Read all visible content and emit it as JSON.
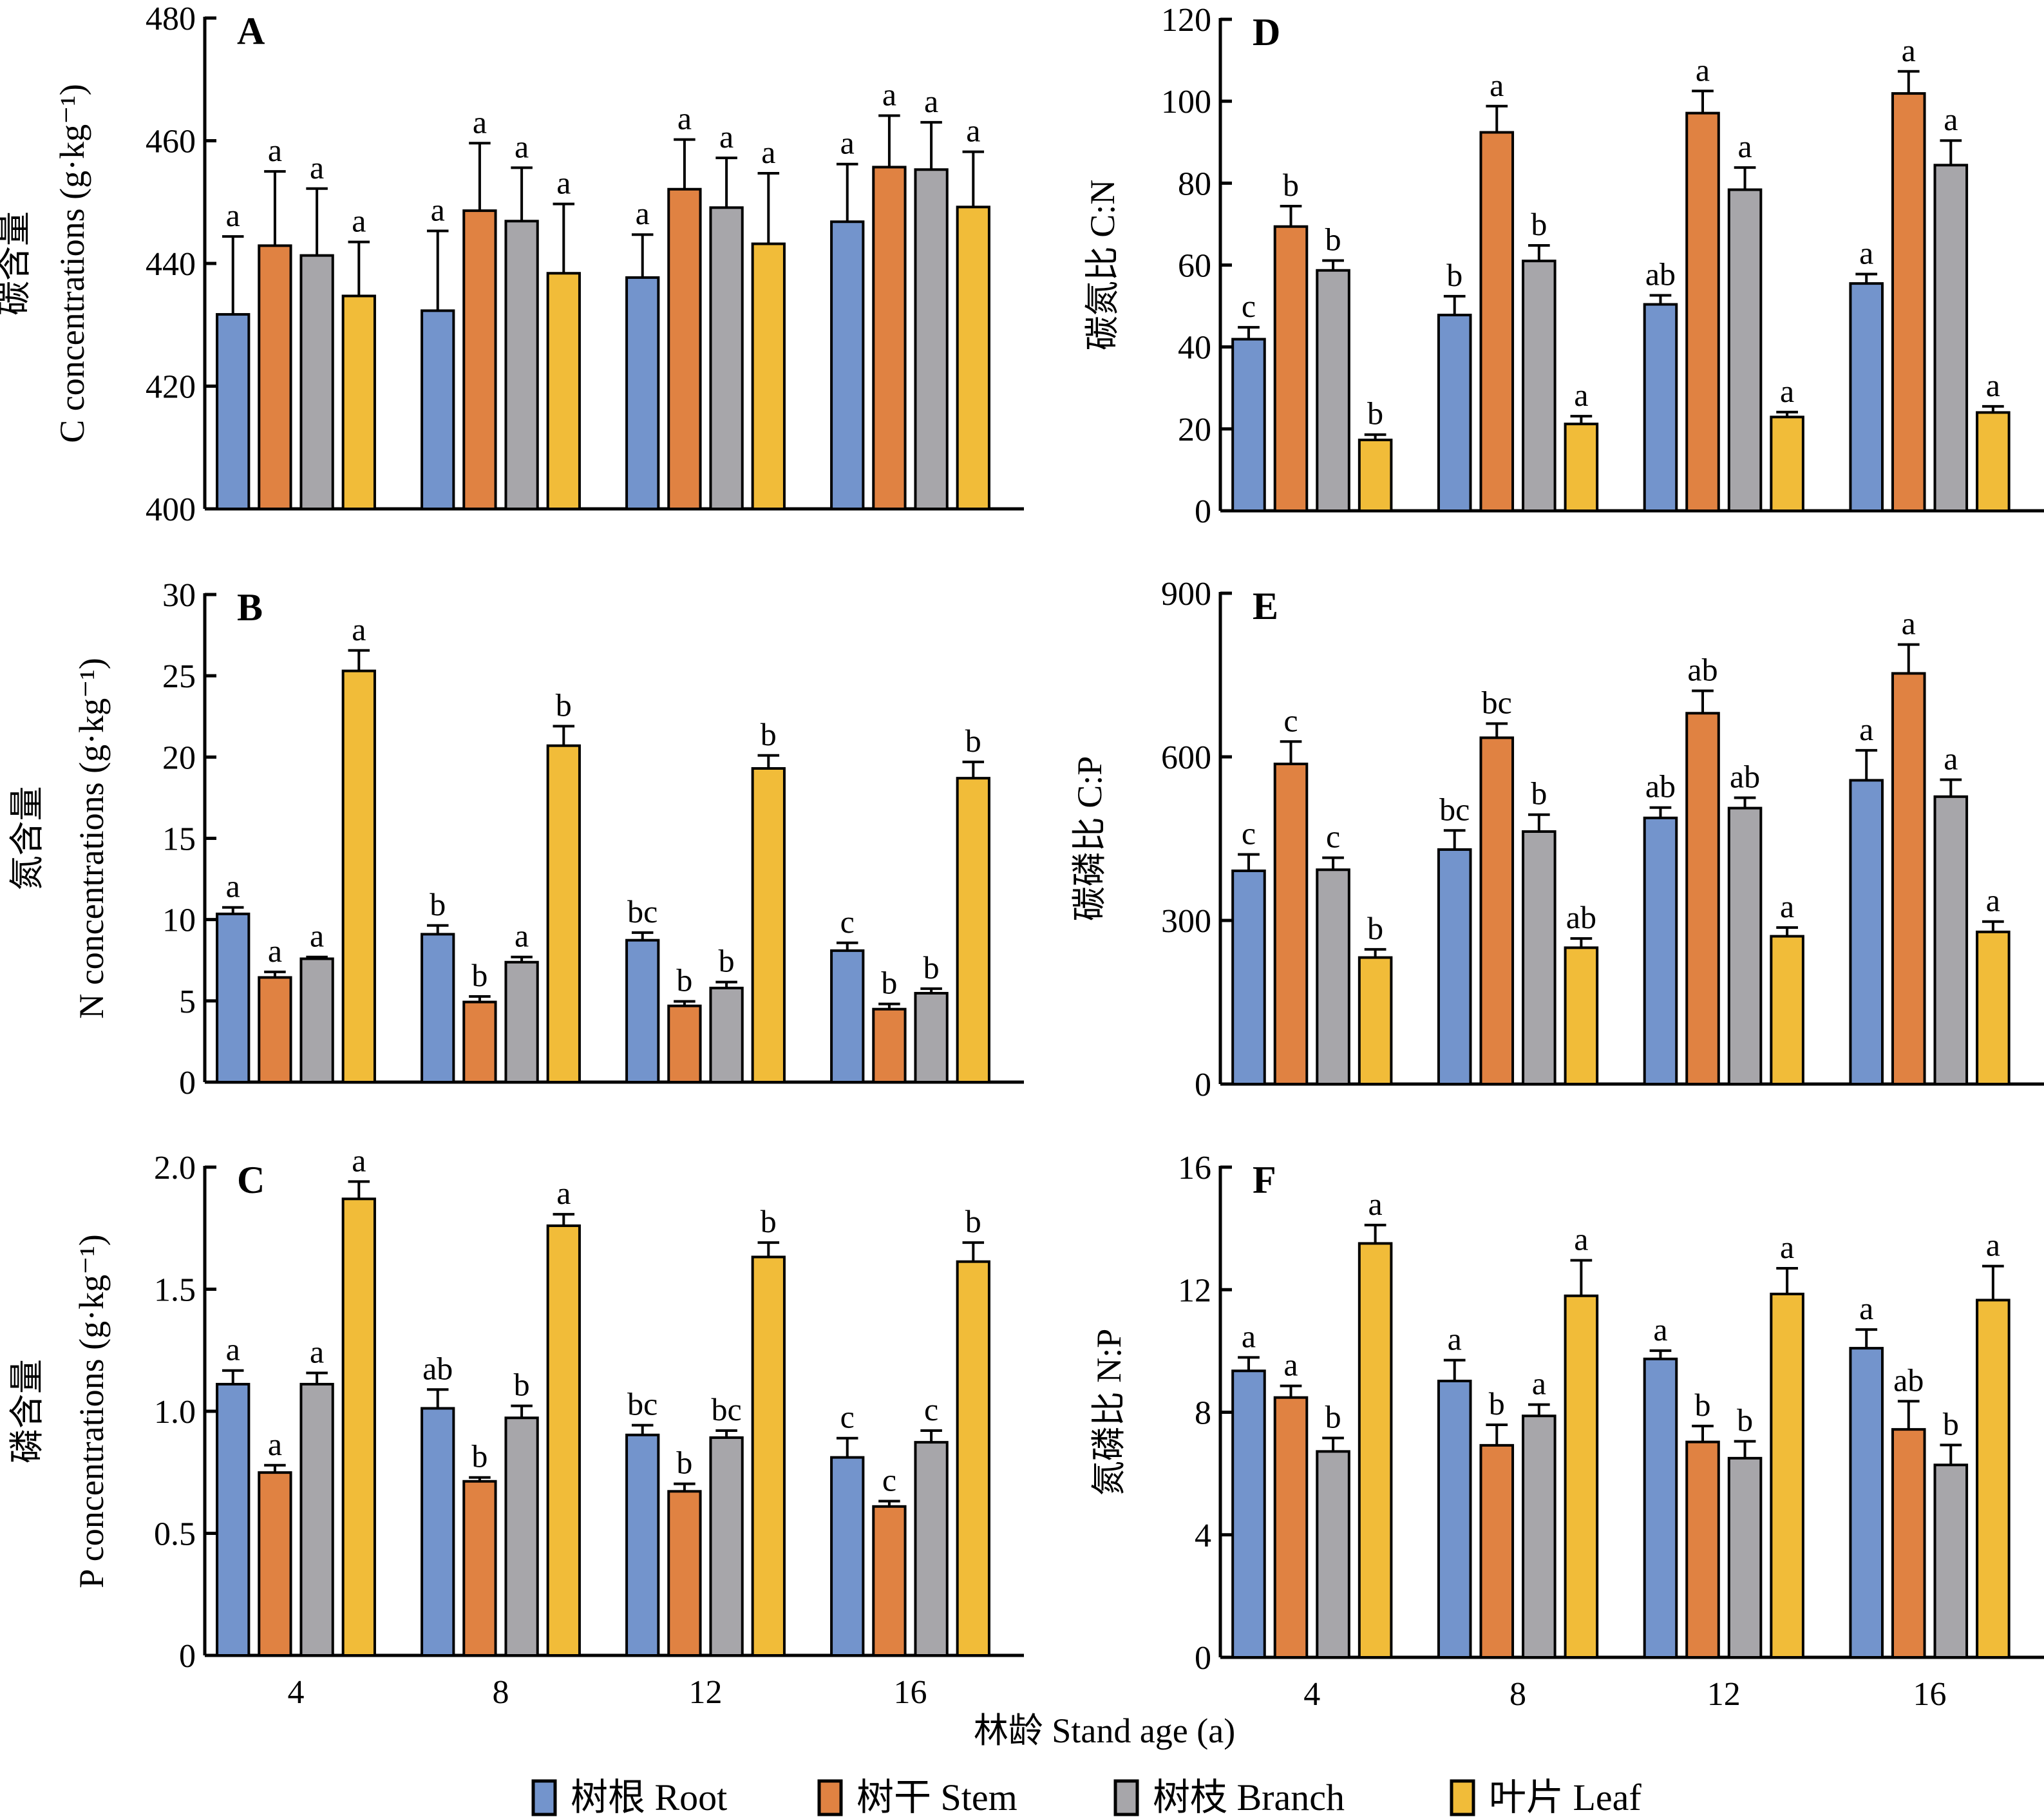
{
  "figure": {
    "x_axis_title": "林龄 Stand age (a)",
    "legend": [
      {
        "label": "树根 Root",
        "color": "#7394cc"
      },
      {
        "label": "树干 Stem",
        "color": "#e08242"
      },
      {
        "label": "树枝 Branch",
        "color": "#a7a6aa"
      },
      {
        "label": "叶片 Leaf",
        "color": "#f1bc39"
      }
    ]
  },
  "chart_data": [
    {
      "panel": "A",
      "type": "bar",
      "title": "A",
      "ylabel_cn": "碳含量",
      "ylabel": "C concentrations (g·kg⁻¹)",
      "xlabel": "林龄 Stand age (a)",
      "categories": [
        "4",
        "8",
        "12",
        "16"
      ],
      "ylim": [
        400,
        480
      ],
      "yticks": [
        400,
        420,
        440,
        460,
        480
      ],
      "ytick_labels": [
        "400",
        "420",
        "440",
        "460",
        "480"
      ],
      "show_xtick_labels": false,
      "series": [
        {
          "name": "树根 Root",
          "values": [
            431.7,
            432.3,
            437.7,
            446.8
          ],
          "error_top": [
            444.4,
            445.3,
            444.7,
            456.2
          ],
          "letters": [
            "a",
            "a",
            "a",
            "a"
          ]
        },
        {
          "name": "树干 Stem",
          "values": [
            442.9,
            448.6,
            452.1,
            455.7
          ],
          "error_top": [
            455.0,
            459.6,
            460.2,
            464.1
          ],
          "letters": [
            "a",
            "a",
            "a",
            "a"
          ]
        },
        {
          "name": "树枝 Branch",
          "values": [
            441.3,
            446.9,
            449.1,
            455.3
          ],
          "error_top": [
            452.2,
            455.6,
            457.2,
            463.0
          ],
          "letters": [
            "a",
            "a",
            "a",
            "a"
          ]
        },
        {
          "name": "叶片 Leaf",
          "values": [
            434.7,
            438.4,
            443.2,
            449.2
          ],
          "error_top": [
            443.5,
            449.7,
            454.7,
            458.2
          ],
          "letters": [
            "a",
            "a",
            "a",
            "a"
          ]
        }
      ]
    },
    {
      "panel": "B",
      "type": "bar",
      "title": "B",
      "ylabel_cn": "氮含量",
      "ylabel": "N concentrations (g·kg⁻¹)",
      "xlabel": "林龄 Stand age (a)",
      "categories": [
        "4",
        "8",
        "12",
        "16"
      ],
      "ylim": [
        0,
        30
      ],
      "yticks": [
        0,
        5,
        10,
        15,
        20,
        25,
        30
      ],
      "ytick_labels": [
        "0",
        "5",
        "10",
        "15",
        "20",
        "25",
        "30"
      ],
      "show_xtick_labels": false,
      "series": [
        {
          "name": "树根 Root",
          "values": [
            10.35,
            9.1,
            8.73,
            8.09
          ],
          "error_top": [
            10.75,
            9.64,
            9.2,
            8.57
          ],
          "letters": [
            "a",
            "b",
            "bc",
            "c"
          ]
        },
        {
          "name": "树干 Stem",
          "values": [
            6.44,
            4.93,
            4.69,
            4.49
          ],
          "error_top": [
            6.78,
            5.27,
            4.97,
            4.81
          ],
          "letters": [
            "a",
            "b",
            "b",
            "b"
          ]
        },
        {
          "name": "树枝 Branch",
          "values": [
            7.59,
            7.38,
            5.79,
            5.47
          ],
          "error_top": [
            7.7,
            7.7,
            6.16,
            5.75
          ],
          "letters": [
            "a",
            "a",
            "b",
            "b"
          ]
        },
        {
          "name": "叶片 Leaf",
          "values": [
            25.3,
            20.7,
            19.3,
            18.7
          ],
          "error_top": [
            26.56,
            21.9,
            20.1,
            19.7
          ],
          "letters": [
            "a",
            "b",
            "b",
            "b"
          ]
        }
      ]
    },
    {
      "panel": "C",
      "type": "bar",
      "title": "C",
      "ylabel_cn": "磷含量",
      "ylabel": "P concentrations (g·kg⁻¹)",
      "xlabel": "林龄 Stand age (a)",
      "categories": [
        "4",
        "8",
        "12",
        "16"
      ],
      "ylim": [
        0,
        2.0
      ],
      "yticks": [
        0,
        0.5,
        1.0,
        1.5,
        2.0
      ],
      "ytick_labels": [
        "0",
        "0.5",
        "1.0",
        "1.5",
        "2.0"
      ],
      "show_xtick_labels": true,
      "series": [
        {
          "name": "树根 Root",
          "values": [
            1.111,
            1.012,
            0.903,
            0.811
          ],
          "error_top": [
            1.167,
            1.089,
            0.943,
            0.89
          ],
          "letters": [
            "a",
            "ab",
            "bc",
            "c"
          ]
        },
        {
          "name": "树干 Stem",
          "values": [
            0.749,
            0.713,
            0.672,
            0.61
          ],
          "error_top": [
            0.779,
            0.729,
            0.703,
            0.632
          ],
          "letters": [
            "a",
            "b",
            "b",
            "c"
          ]
        },
        {
          "name": "树枝 Branch",
          "values": [
            1.111,
            0.973,
            0.892,
            0.873
          ],
          "error_top": [
            1.157,
            1.022,
            0.921,
            0.921
          ],
          "letters": [
            "a",
            "b",
            "bc",
            "c"
          ]
        },
        {
          "name": "叶片 Leaf",
          "values": [
            1.87,
            1.76,
            1.632,
            1.613
          ],
          "error_top": [
            1.941,
            1.807,
            1.691,
            1.691
          ],
          "letters": [
            "a",
            "a",
            "b",
            "b"
          ]
        }
      ]
    },
    {
      "panel": "D",
      "type": "bar",
      "title": "D",
      "ylabel_cn": "碳氮比",
      "ylabel": "C:N",
      "xlabel": "林龄 Stand age (a)",
      "categories": [
        "4",
        "8",
        "12",
        "16"
      ],
      "ylim": [
        0,
        120
      ],
      "yticks": [
        0,
        20,
        40,
        60,
        80,
        100,
        120
      ],
      "ytick_labels": [
        "0",
        "20",
        "40",
        "60",
        "80",
        "100",
        "120"
      ],
      "show_xtick_labels": false,
      "series": [
        {
          "name": "树根 Root",
          "values": [
            41.9,
            47.8,
            50.4,
            55.5
          ],
          "error_top": [
            44.8,
            52.4,
            52.6,
            57.8
          ],
          "letters": [
            "c",
            "b",
            "ab",
            "a"
          ]
        },
        {
          "name": "树干 Stem",
          "values": [
            69.4,
            92.4,
            97.1,
            101.9
          ],
          "error_top": [
            74.4,
            98.8,
            102.5,
            107.3
          ],
          "letters": [
            "b",
            "a",
            "a",
            "a"
          ]
        },
        {
          "name": "树枝 Branch",
          "values": [
            58.7,
            61.0,
            78.4,
            84.4
          ],
          "error_top": [
            61.1,
            64.8,
            83.8,
            90.4
          ],
          "letters": [
            "b",
            "b",
            "a",
            "a"
          ]
        },
        {
          "name": "叶片 Leaf",
          "values": [
            17.3,
            21.2,
            22.9,
            24.0
          ],
          "error_top": [
            18.6,
            23.1,
            24.1,
            25.5
          ],
          "letters": [
            "b",
            "a",
            "a",
            "a"
          ]
        }
      ]
    },
    {
      "panel": "E",
      "type": "bar",
      "title": "E",
      "ylabel_cn": "碳磷比",
      "ylabel": "C:P",
      "xlabel": "林龄 Stand age (a)",
      "categories": [
        "4",
        "8",
        "12",
        "16"
      ],
      "ylim": [
        0,
        900
      ],
      "yticks": [
        0,
        300,
        600,
        900
      ],
      "ytick_labels": [
        "0",
        "300",
        "600",
        "900"
      ],
      "show_xtick_labels": false,
      "series": [
        {
          "name": "树根 Root",
          "values": [
            391,
            430,
            488,
            557
          ],
          "error_top": [
            421,
            465,
            507,
            612
          ],
          "letters": [
            "c",
            "bc",
            "ab",
            "a"
          ]
        },
        {
          "name": "树干 Stem",
          "values": [
            587,
            635,
            680,
            753
          ],
          "error_top": [
            628,
            661,
            721,
            806
          ],
          "letters": [
            "c",
            "bc",
            "ab",
            "a"
          ]
        },
        {
          "name": "树枝 Branch",
          "values": [
            393,
            463,
            506,
            527
          ],
          "error_top": [
            415,
            494,
            525,
            558
          ],
          "letters": [
            "c",
            "b",
            "ab",
            "a"
          ]
        },
        {
          "name": "叶片 Leaf",
          "values": [
            232,
            250,
            271,
            279
          ],
          "error_top": [
            247,
            267,
            287,
            298
          ],
          "letters": [
            "b",
            "ab",
            "a",
            "a"
          ]
        }
      ]
    },
    {
      "panel": "F",
      "type": "bar",
      "title": "F",
      "ylabel_cn": "氮磷比",
      "ylabel": "N:P",
      "xlabel": "林龄 Stand age (a)",
      "categories": [
        "4",
        "8",
        "12",
        "16"
      ],
      "ylim": [
        0,
        16
      ],
      "yticks": [
        0,
        4,
        8,
        12,
        16
      ],
      "ytick_labels": [
        "0",
        "4",
        "8",
        "12",
        "16"
      ],
      "show_xtick_labels": true,
      "series": [
        {
          "name": "树根 Root",
          "values": [
            9.35,
            9.02,
            9.74,
            10.09
          ],
          "error_top": [
            9.79,
            9.7,
            10.01,
            10.7
          ],
          "letters": [
            "a",
            "a",
            "a",
            "a"
          ]
        },
        {
          "name": "树干 Stem",
          "values": [
            8.48,
            6.92,
            7.03,
            7.44
          ],
          "error_top": [
            8.86,
            7.59,
            7.55,
            8.36
          ],
          "letters": [
            "a",
            "b",
            "b",
            "ab"
          ]
        },
        {
          "name": "树枝 Branch",
          "values": [
            6.72,
            7.88,
            6.5,
            6.28
          ],
          "error_top": [
            7.16,
            8.25,
            7.05,
            6.93
          ],
          "letters": [
            "b",
            "a",
            "b",
            "b"
          ]
        },
        {
          "name": "叶片 Leaf",
          "values": [
            13.51,
            11.8,
            11.86,
            11.66
          ],
          "error_top": [
            14.11,
            12.96,
            12.7,
            12.77
          ],
          "letters": [
            "a",
            "a",
            "a",
            "a"
          ]
        }
      ]
    }
  ]
}
